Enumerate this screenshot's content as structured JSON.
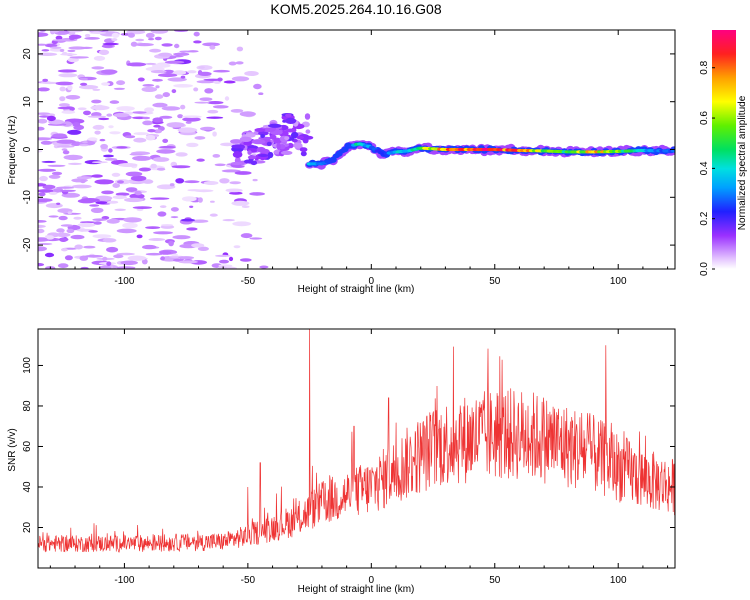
{
  "title": "KOM5.2025.264.10.16.G08",
  "chart_data": [
    {
      "type": "heatmap",
      "name": "spectrogram",
      "xlabel": "Height of straight line (km)",
      "ylabel": "Frequency (Hz)",
      "xlim": [
        -135,
        123
      ],
      "ylim": [
        -25,
        25
      ],
      "xticks": [
        -100,
        -50,
        0,
        50,
        100
      ],
      "xtick_labels": [
        "-100",
        "-50",
        "0",
        "50",
        "100"
      ],
      "yticks": [
        -20,
        -10,
        0,
        10,
        20
      ],
      "ytick_labels": [
        "-20",
        "-10",
        "0",
        "10",
        "20"
      ],
      "colorbar": {
        "label": "Normalized spectral amplitude",
        "range": [
          0,
          0.95
        ],
        "ticks": [
          0,
          0.2,
          0.4,
          0.6,
          0.8
        ],
        "tick_labels": [
          "0.0",
          "0.2",
          "0.4",
          "0.6",
          "0.8"
        ]
      },
      "ridge": {
        "description": "dominant frequency track",
        "x": [
          -55,
          -50,
          -45,
          -40,
          -35,
          -30,
          -25,
          -20,
          -15,
          -10,
          -5,
          0,
          5,
          10,
          15,
          20,
          30,
          40,
          50,
          60,
          70,
          80,
          90,
          100,
          110,
          120
        ],
        "y": [
          -2.5,
          -1,
          0,
          1.5,
          3,
          4,
          -3,
          -3,
          -2,
          0.5,
          1.2,
          0.5,
          -1,
          -0.5,
          -0.3,
          0.3,
          0,
          0,
          0,
          -0.2,
          -0.3,
          -0.5,
          -0.5,
          -0.4,
          -0.2,
          -0.3
        ],
        "amplitude": [
          0.1,
          0.15,
          0.15,
          0.12,
          0.12,
          0.12,
          0.4,
          0.35,
          0.15,
          0.2,
          0.5,
          0.3,
          0.25,
          0.45,
          0.35,
          0.6,
          0.85,
          0.9,
          0.92,
          0.88,
          0.6,
          0.55,
          0.8,
          0.6,
          0.4,
          0.3
        ]
      }
    },
    {
      "type": "line",
      "name": "snr",
      "xlabel": "Height of straight line (km)",
      "ylabel": "SNR (v/v)",
      "xlim": [
        -135,
        123
      ],
      "ylim": [
        0,
        118
      ],
      "xticks": [
        -100,
        -50,
        0,
        50,
        100
      ],
      "xtick_labels": [
        "-100",
        "-50",
        "0",
        "50",
        "100"
      ],
      "yticks": [
        20,
        40,
        60,
        80,
        100
      ],
      "ytick_labels": [
        "20",
        "40",
        "60",
        "80",
        "100"
      ],
      "color": "#ee3333",
      "envelope": {
        "x": [
          -135,
          -100,
          -60,
          -50,
          -40,
          -30,
          -20,
          -10,
          0,
          10,
          20,
          30,
          40,
          50,
          60,
          70,
          80,
          90,
          100,
          110,
          123
        ],
        "y": [
          12,
          12,
          13,
          16,
          20,
          24,
          32,
          36,
          40,
          48,
          56,
          62,
          64,
          66,
          66,
          64,
          60,
          56,
          50,
          44,
          40
        ]
      },
      "spikes": {
        "x": [
          -50,
          -25,
          -45,
          -7,
          7,
          95
        ],
        "y": [
          40,
          118,
          52,
          70,
          84,
          110
        ]
      }
    }
  ]
}
